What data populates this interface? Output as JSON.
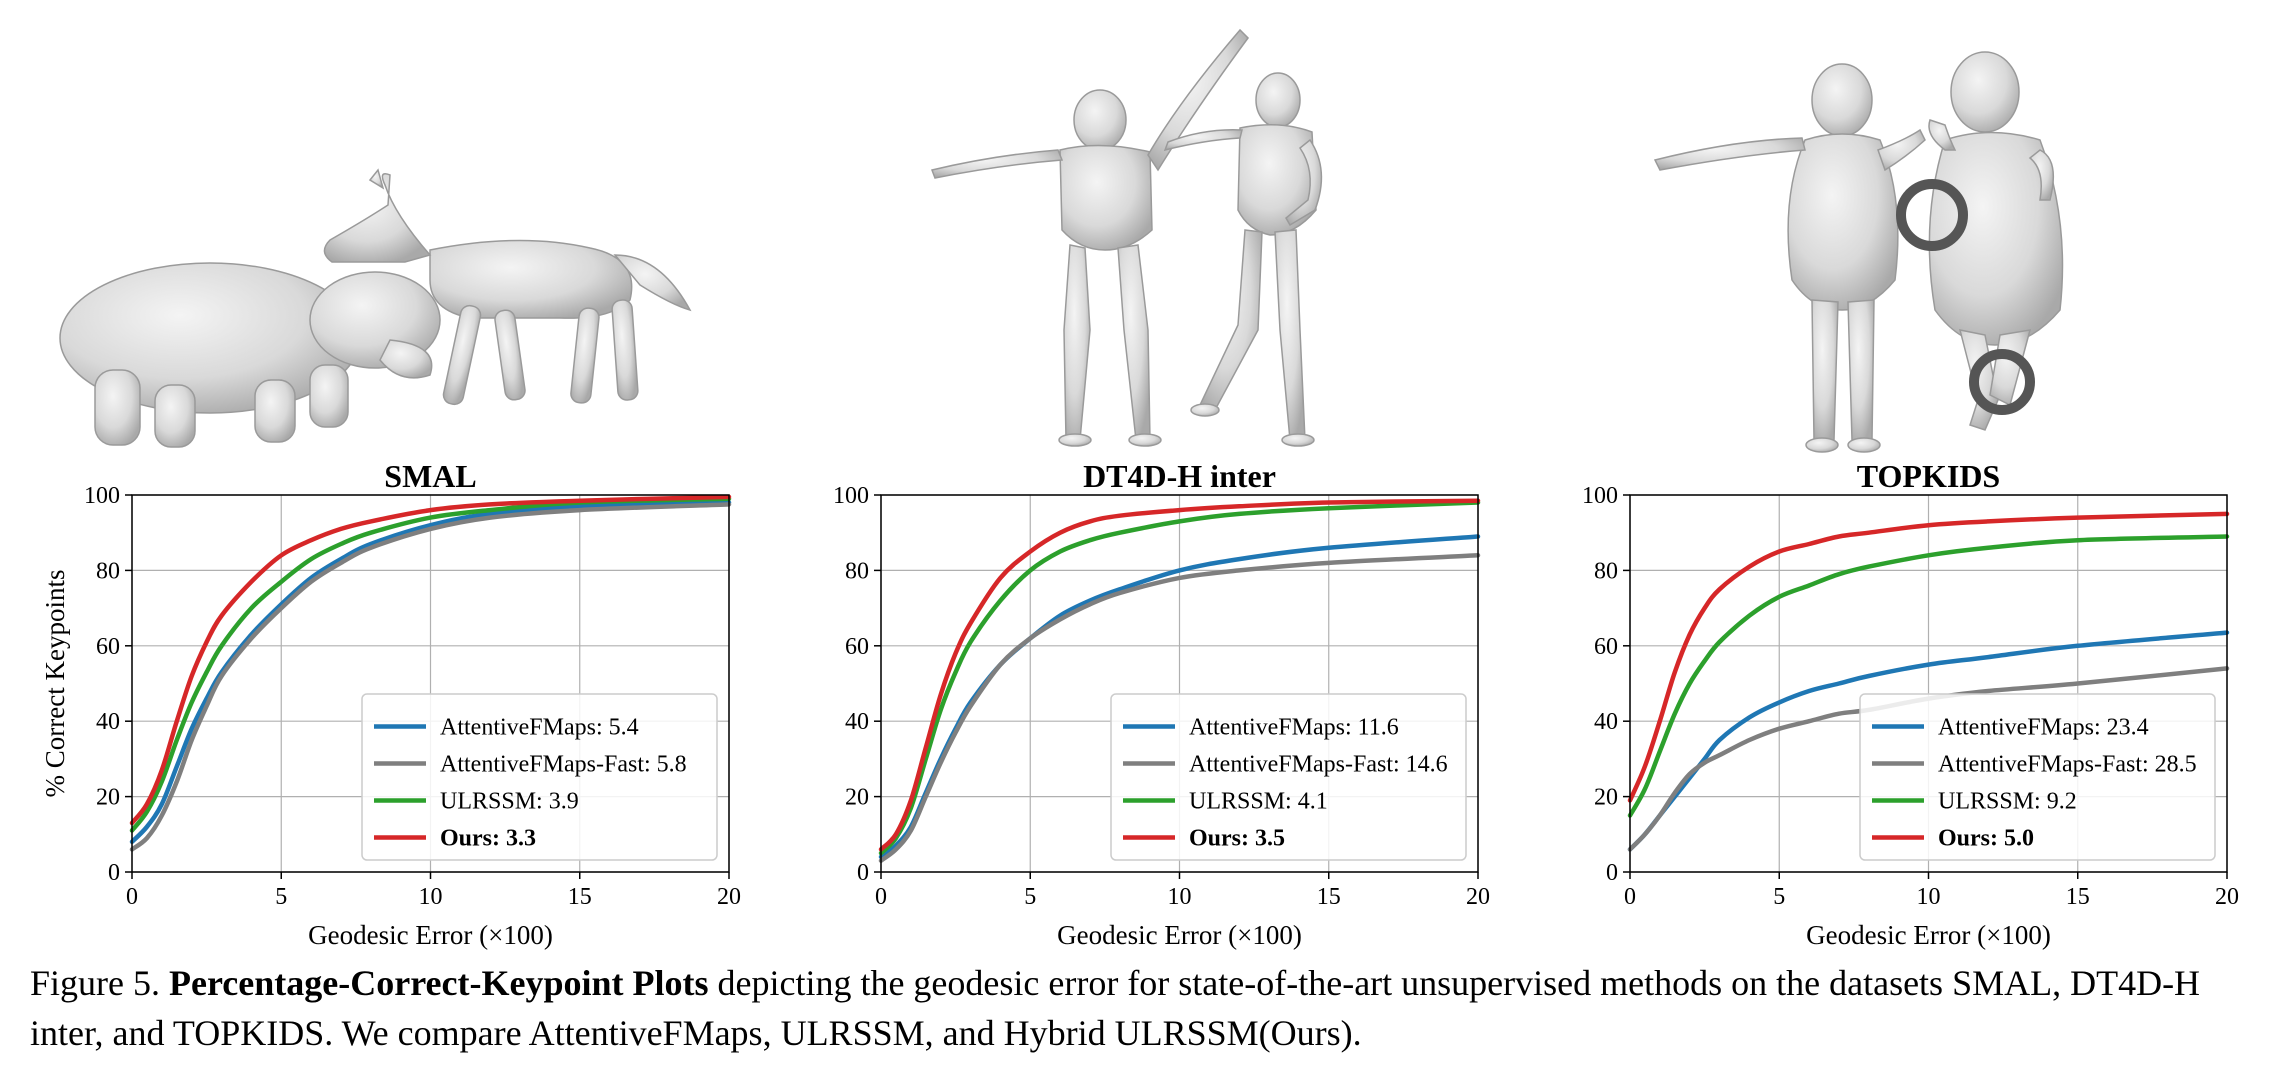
{
  "figure": {
    "images": [
      {
        "name": "smal-shapes",
        "subject": "hippo and horse meshes"
      },
      {
        "name": "dt4d-shapes",
        "subject": "two humanoid character meshes"
      },
      {
        "name": "topkids-shapes",
        "subject": "two child body meshes with topological noise markers"
      }
    ]
  },
  "caption": {
    "label": "Figure 5.",
    "bold": "Percentage-Correct-Keypoint Plots",
    "rest": "depicting the geodesic error for state-of-the-art unsupervised methods on the datasets SMAL, DT4D-H inter, and TOPKIDS. We compare AttentiveFMaps, ULRSSM, and Hybrid ULRSSM(Ours)."
  },
  "colors": {
    "AttentiveFMaps": "#1f77b4",
    "AttentiveFMaps-Fast": "#7f7f7f",
    "ULRSSM": "#2ca02c",
    "Ours": "#d62728"
  },
  "chart_data": [
    {
      "type": "line",
      "title": "SMAL",
      "xlabel": "Geodesic Error (×100)",
      "ylabel": "% Correct Keypoints",
      "xlim": [
        0,
        20
      ],
      "ylim": [
        0,
        100
      ],
      "xticks": [
        "0",
        "5",
        "10",
        "15",
        "20"
      ],
      "yticks": [
        "0",
        "20",
        "40",
        "60",
        "80",
        "100"
      ],
      "grid": true,
      "legend_position": "lower-right",
      "x": [
        0,
        0.5,
        1,
        1.5,
        2,
        2.5,
        3,
        4,
        5,
        6,
        7,
        8,
        10,
        12,
        15,
        20
      ],
      "series": [
        {
          "name": "AttentiveFMaps: 5.4",
          "key": "AttentiveFMaps",
          "bold": false,
          "values": [
            8,
            12,
            18,
            28,
            38,
            46,
            53,
            63,
            71,
            78,
            83,
            87,
            92,
            95,
            97,
            98
          ]
        },
        {
          "name": "AttentiveFMaps-Fast: 5.8",
          "key": "AttentiveFMaps-Fast",
          "bold": false,
          "values": [
            6,
            9,
            15,
            24,
            35,
            44,
            52,
            62,
            70,
            77,
            82,
            86,
            91,
            94,
            96,
            97.5
          ]
        },
        {
          "name": "ULRSSM: 3.9",
          "key": "ULRSSM",
          "bold": false,
          "values": [
            11,
            16,
            24,
            35,
            45,
            53,
            60,
            70,
            77,
            83,
            87,
            90,
            94,
            96,
            98,
            99
          ]
        },
        {
          "name": "Ours: 3.3",
          "key": "Ours",
          "bold": true,
          "values": [
            13,
            18,
            27,
            40,
            52,
            61,
            68,
            77,
            84,
            88,
            91,
            93,
            96,
            97.5,
            98.5,
            99.5
          ]
        }
      ]
    },
    {
      "type": "line",
      "title": "DT4D-H inter",
      "xlabel": "Geodesic Error (×100)",
      "ylabel": "",
      "xlim": [
        0,
        20
      ],
      "ylim": [
        0,
        100
      ],
      "xticks": [
        "0",
        "5",
        "10",
        "15",
        "20"
      ],
      "yticks": [
        "0",
        "20",
        "40",
        "60",
        "80",
        "100"
      ],
      "grid": true,
      "legend_position": "lower-right",
      "x": [
        0,
        0.5,
        1,
        1.5,
        2,
        2.5,
        3,
        4,
        5,
        6,
        7,
        8,
        10,
        12,
        15,
        20
      ],
      "series": [
        {
          "name": "AttentiveFMaps: 11.6",
          "key": "AttentiveFMaps",
          "bold": false,
          "values": [
            4,
            7,
            12,
            21,
            30,
            38,
            45,
            55,
            62,
            68,
            72,
            75,
            80,
            83,
            86,
            89
          ]
        },
        {
          "name": "AttentiveFMaps-Fast: 14.6",
          "key": "AttentiveFMaps-Fast",
          "bold": false,
          "values": [
            3,
            6,
            11,
            20,
            29,
            37,
            44,
            55,
            62,
            67,
            71,
            74,
            78,
            80,
            82,
            84
          ]
        },
        {
          "name": "ULRSSM: 4.1",
          "key": "ULRSSM",
          "bold": false,
          "values": [
            5,
            9,
            17,
            30,
            43,
            53,
            61,
            72,
            80,
            85,
            88,
            90,
            93,
            95,
            96.5,
            98
          ]
        },
        {
          "name": "Ours: 3.5",
          "key": "Ours",
          "bold": true,
          "values": [
            6,
            10,
            19,
            33,
            47,
            58,
            66,
            78,
            85,
            90,
            93,
            94.5,
            96,
            97,
            98,
            98.5
          ]
        }
      ]
    },
    {
      "type": "line",
      "title": "TOPKIDS",
      "xlabel": "Geodesic Error (×100)",
      "ylabel": "",
      "xlim": [
        0,
        20
      ],
      "ylim": [
        0,
        100
      ],
      "xticks": [
        "0",
        "5",
        "10",
        "15",
        "20"
      ],
      "yticks": [
        "0",
        "20",
        "40",
        "60",
        "80",
        "100"
      ],
      "grid": true,
      "legend_position": "lower-right",
      "x": [
        0,
        0.5,
        1,
        1.5,
        2,
        2.5,
        3,
        4,
        5,
        6,
        7,
        8,
        10,
        12,
        15,
        20
      ],
      "series": [
        {
          "name": "AttentiveFMaps: 23.4",
          "key": "AttentiveFMaps",
          "bold": false,
          "values": [
            6,
            10,
            15,
            20,
            25,
            30,
            35,
            41,
            45,
            48,
            50,
            52,
            55,
            57,
            60,
            63.5
          ]
        },
        {
          "name": "AttentiveFMaps-Fast: 28.5",
          "key": "AttentiveFMaps-Fast",
          "bold": false,
          "values": [
            6,
            10,
            15,
            21,
            26,
            29,
            31,
            35,
            38,
            40,
            42,
            43,
            46,
            48,
            50,
            54
          ]
        },
        {
          "name": "ULRSSM: 9.2",
          "key": "ULRSSM",
          "bold": false,
          "values": [
            15,
            22,
            32,
            42,
            50,
            56,
            61,
            68,
            73,
            76,
            79,
            81,
            84,
            86,
            88,
            89
          ]
        },
        {
          "name": "Ours: 5.0",
          "key": "Ours",
          "bold": true,
          "values": [
            19,
            28,
            40,
            53,
            63,
            70,
            75,
            81,
            85,
            87,
            89,
            90,
            92,
            93,
            94,
            95
          ]
        }
      ]
    }
  ]
}
